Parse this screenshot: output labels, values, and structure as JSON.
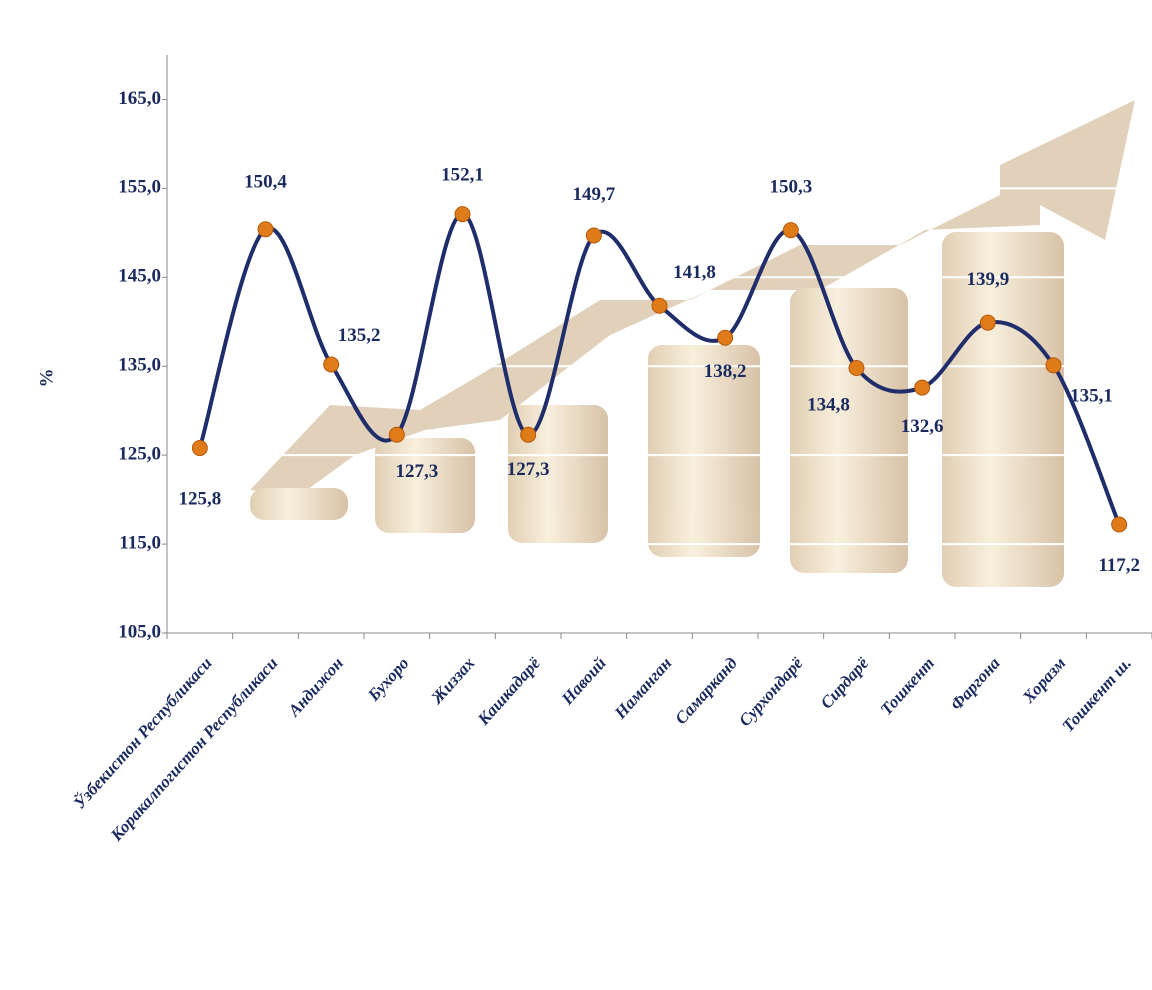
{
  "chart_data": {
    "type": "line",
    "y_label": "%",
    "categories": [
      "Ўзбекистон Республикаси",
      "Коракалпогистон Республикаси",
      "Андижон",
      "Бухоро",
      "Жиззах",
      "Кашкадарё",
      "Навоий",
      "Наманган",
      "Самарканд",
      "Сурхондарё",
      "Сирдарё",
      "Тошкент",
      "Фаргона",
      "Хоразм",
      "Тошкент ш."
    ],
    "values": [
      125.8,
      150.4,
      135.2,
      127.3,
      152.1,
      127.3,
      149.7,
      141.8,
      138.2,
      150.3,
      134.8,
      132.6,
      139.9,
      135.1,
      117.2
    ],
    "value_labels": [
      "125,8",
      "150,4",
      "135,2",
      "127,3",
      "152,1",
      "127,3",
      "149,7",
      "141,8",
      "138,2",
      "150,3",
      "134,8",
      "132,6",
      "139,9",
      "135,1",
      "117,2"
    ],
    "color": "#1f2d6b",
    "marker_color": "#e07b1a",
    "ylim": [
      105,
      170
    ],
    "yticks": [
      {
        "value": 105,
        "label": "105,0"
      },
      {
        "value": 115,
        "label": "115,0"
      },
      {
        "value": 125,
        "label": "125,0"
      },
      {
        "value": 135,
        "label": "135,0"
      },
      {
        "value": 145,
        "label": "145,0"
      },
      {
        "value": 155,
        "label": "155,0"
      },
      {
        "value": 165,
        "label": "165,0"
      }
    ],
    "grid": true
  }
}
